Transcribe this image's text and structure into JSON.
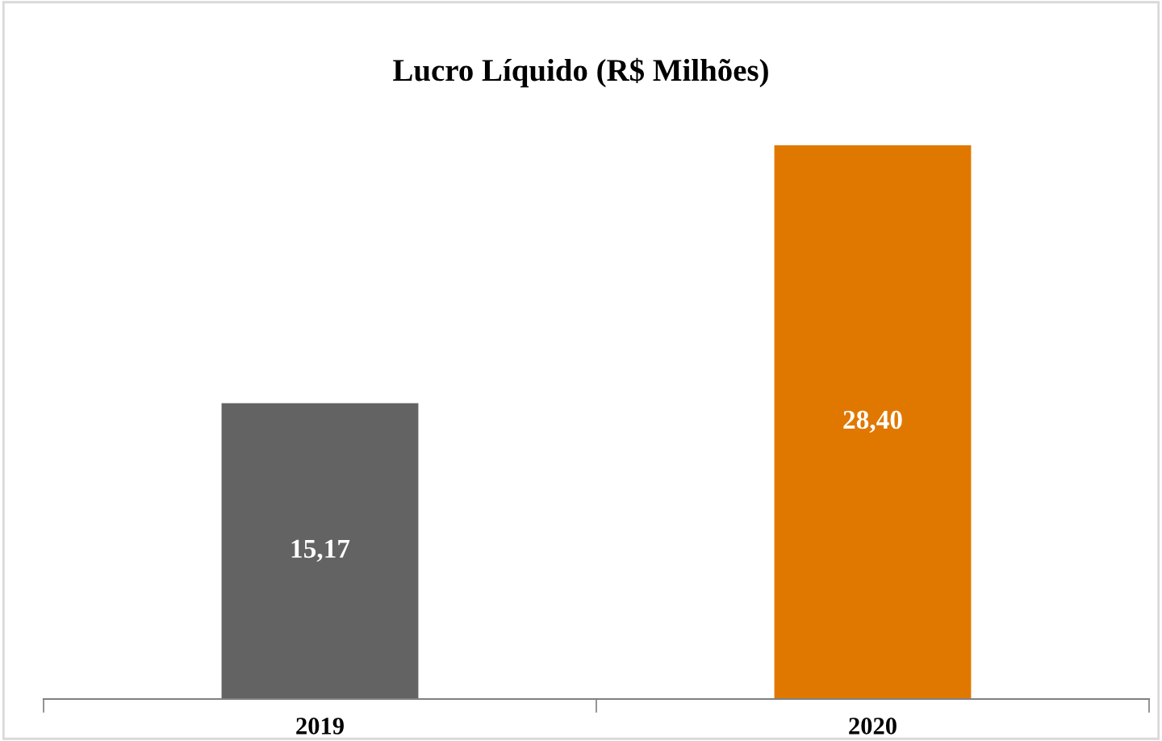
{
  "chart_data": {
    "type": "bar",
    "title": "Lucro Líquido (R$ Milhões)",
    "categories": [
      "2019",
      "2020"
    ],
    "values": [
      15.17,
      28.4
    ],
    "colors": [
      "#636363",
      "#e07800"
    ],
    "value_labels": [
      "15,17",
      "28,40"
    ],
    "grid": false,
    "legend": false
  }
}
